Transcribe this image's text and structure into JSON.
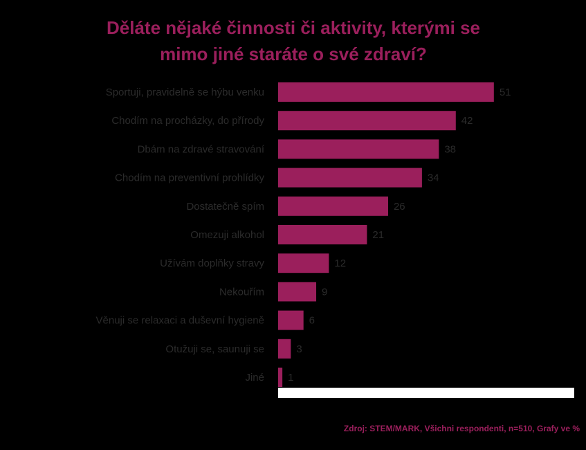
{
  "chart_data": {
    "type": "hbar",
    "title": [
      "Děláte nějaké činnosti či aktivity, kterými se",
      "mimo jiné staráte o své zdraví?"
    ],
    "categories": [
      "Sportuji, pravidelně se hýbu venku",
      "Chodím na procházky, do přírody",
      "Dbám na zdravé stravování",
      "Chodím na preventivní prohlídky",
      "Dostatečně spím",
      "Omezuji alkohol",
      "Užívám doplňky stravy",
      "Nekouřím",
      "Věnuji se relaxaci a duševní hygieně",
      "Otužuji se, saunuji se",
      "Jiné"
    ],
    "values": [
      51,
      42,
      38,
      34,
      26,
      21,
      12,
      9,
      6,
      3,
      1
    ],
    "color": "#9b1f5c",
    "xlim": [
      0,
      70
    ],
    "source": "Zdroj: STEM/MARK, Všichni respondenti, n=510, Grafy ve %"
  }
}
